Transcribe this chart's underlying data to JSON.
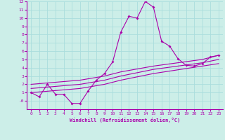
{
  "background_color": "#cceee8",
  "grid_color": "#aadddd",
  "line_color": "#aa00aa",
  "xlim": [
    -0.5,
    23.5
  ],
  "ylim": [
    -1,
    12
  ],
  "xticks": [
    0,
    1,
    2,
    3,
    4,
    5,
    6,
    7,
    8,
    9,
    10,
    11,
    12,
    13,
    14,
    15,
    16,
    17,
    18,
    19,
    20,
    21,
    22,
    23
  ],
  "yticks": [
    0,
    1,
    2,
    3,
    4,
    5,
    6,
    7,
    8,
    9,
    10,
    11,
    12
  ],
  "ytick_labels": [
    "-0",
    "1",
    "2",
    "3",
    "4",
    "5",
    "6",
    "7",
    "8",
    "9",
    "10",
    "11",
    "12"
  ],
  "xlabel": "Windchill (Refroidissement éolien,°C)",
  "main_x": [
    0,
    1,
    2,
    3,
    4,
    5,
    6,
    7,
    8,
    9,
    10,
    11,
    12,
    13,
    14,
    15,
    16,
    17,
    18,
    19,
    20,
    21,
    22,
    23
  ],
  "main_y": [
    1.0,
    0.5,
    2.0,
    0.8,
    0.8,
    -0.3,
    -0.3,
    1.2,
    2.5,
    3.3,
    4.7,
    8.3,
    10.2,
    10.0,
    12.0,
    11.3,
    7.2,
    6.6,
    5.1,
    4.3,
    4.2,
    4.5,
    5.3,
    5.5
  ],
  "line1_x": [
    0,
    6,
    9,
    11,
    15,
    21,
    23
  ],
  "line1_y": [
    2.0,
    2.5,
    3.0,
    3.5,
    4.2,
    5.0,
    5.5
  ],
  "line2_x": [
    0,
    6,
    9,
    11,
    15,
    21,
    23
  ],
  "line2_y": [
    1.5,
    2.0,
    2.5,
    3.0,
    3.8,
    4.6,
    5.0
  ],
  "line3_x": [
    0,
    6,
    9,
    11,
    15,
    21,
    23
  ],
  "line3_y": [
    1.0,
    1.5,
    2.0,
    2.5,
    3.3,
    4.2,
    4.5
  ]
}
